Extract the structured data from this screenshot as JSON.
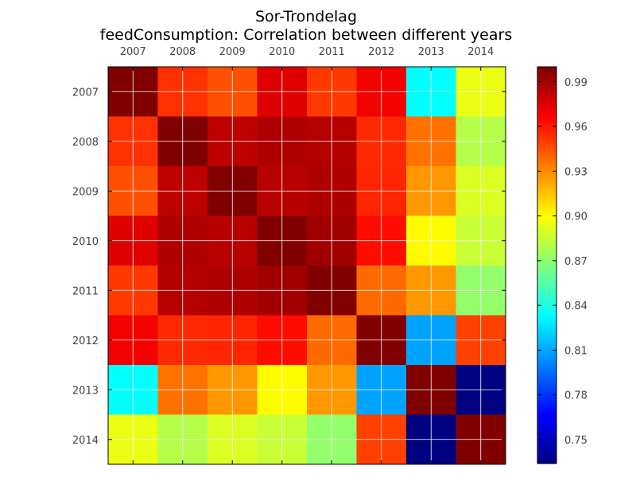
{
  "chart_data": {
    "type": "heatmap",
    "title": "Sor-Trondelag",
    "subtitle": "feedConsumption: Correlation between different years",
    "x_categories": [
      "2007",
      "2008",
      "2009",
      "2010",
      "2011",
      "2012",
      "2013",
      "2014"
    ],
    "y_categories": [
      "2007",
      "2008",
      "2009",
      "2010",
      "2011",
      "2012",
      "2013",
      "2014"
    ],
    "x_axis_position": "top",
    "values": [
      [
        1.0,
        0.954,
        0.946,
        0.975,
        0.952,
        0.97,
        0.834,
        0.895
      ],
      [
        0.954,
        1.0,
        0.984,
        0.988,
        0.986,
        0.956,
        0.937,
        0.881
      ],
      [
        0.946,
        0.984,
        1.0,
        0.985,
        0.988,
        0.957,
        0.927,
        0.891
      ],
      [
        0.975,
        0.988,
        0.985,
        1.0,
        0.991,
        0.964,
        0.901,
        0.886
      ],
      [
        0.952,
        0.986,
        0.988,
        0.991,
        1.0,
        0.939,
        0.927,
        0.872
      ],
      [
        0.97,
        0.956,
        0.957,
        0.964,
        0.939,
        1.0,
        0.81,
        0.95
      ],
      [
        0.834,
        0.937,
        0.927,
        0.901,
        0.927,
        0.81,
        1.0,
        0.734
      ],
      [
        0.895,
        0.881,
        0.891,
        0.886,
        0.872,
        0.95,
        0.734,
        1.0
      ]
    ],
    "colormap": "jet",
    "colorbar": {
      "min": 0.734,
      "max": 1.0,
      "ticks": [
        0.75,
        0.78,
        0.81,
        0.84,
        0.87,
        0.9,
        0.93,
        0.96,
        0.99
      ],
      "tick_labels": [
        "0.75",
        "0.78",
        "0.81",
        "0.84",
        "0.87",
        "0.90",
        "0.93",
        "0.96",
        "0.99"
      ]
    },
    "grid": true,
    "grid_color": "#ffffff"
  }
}
